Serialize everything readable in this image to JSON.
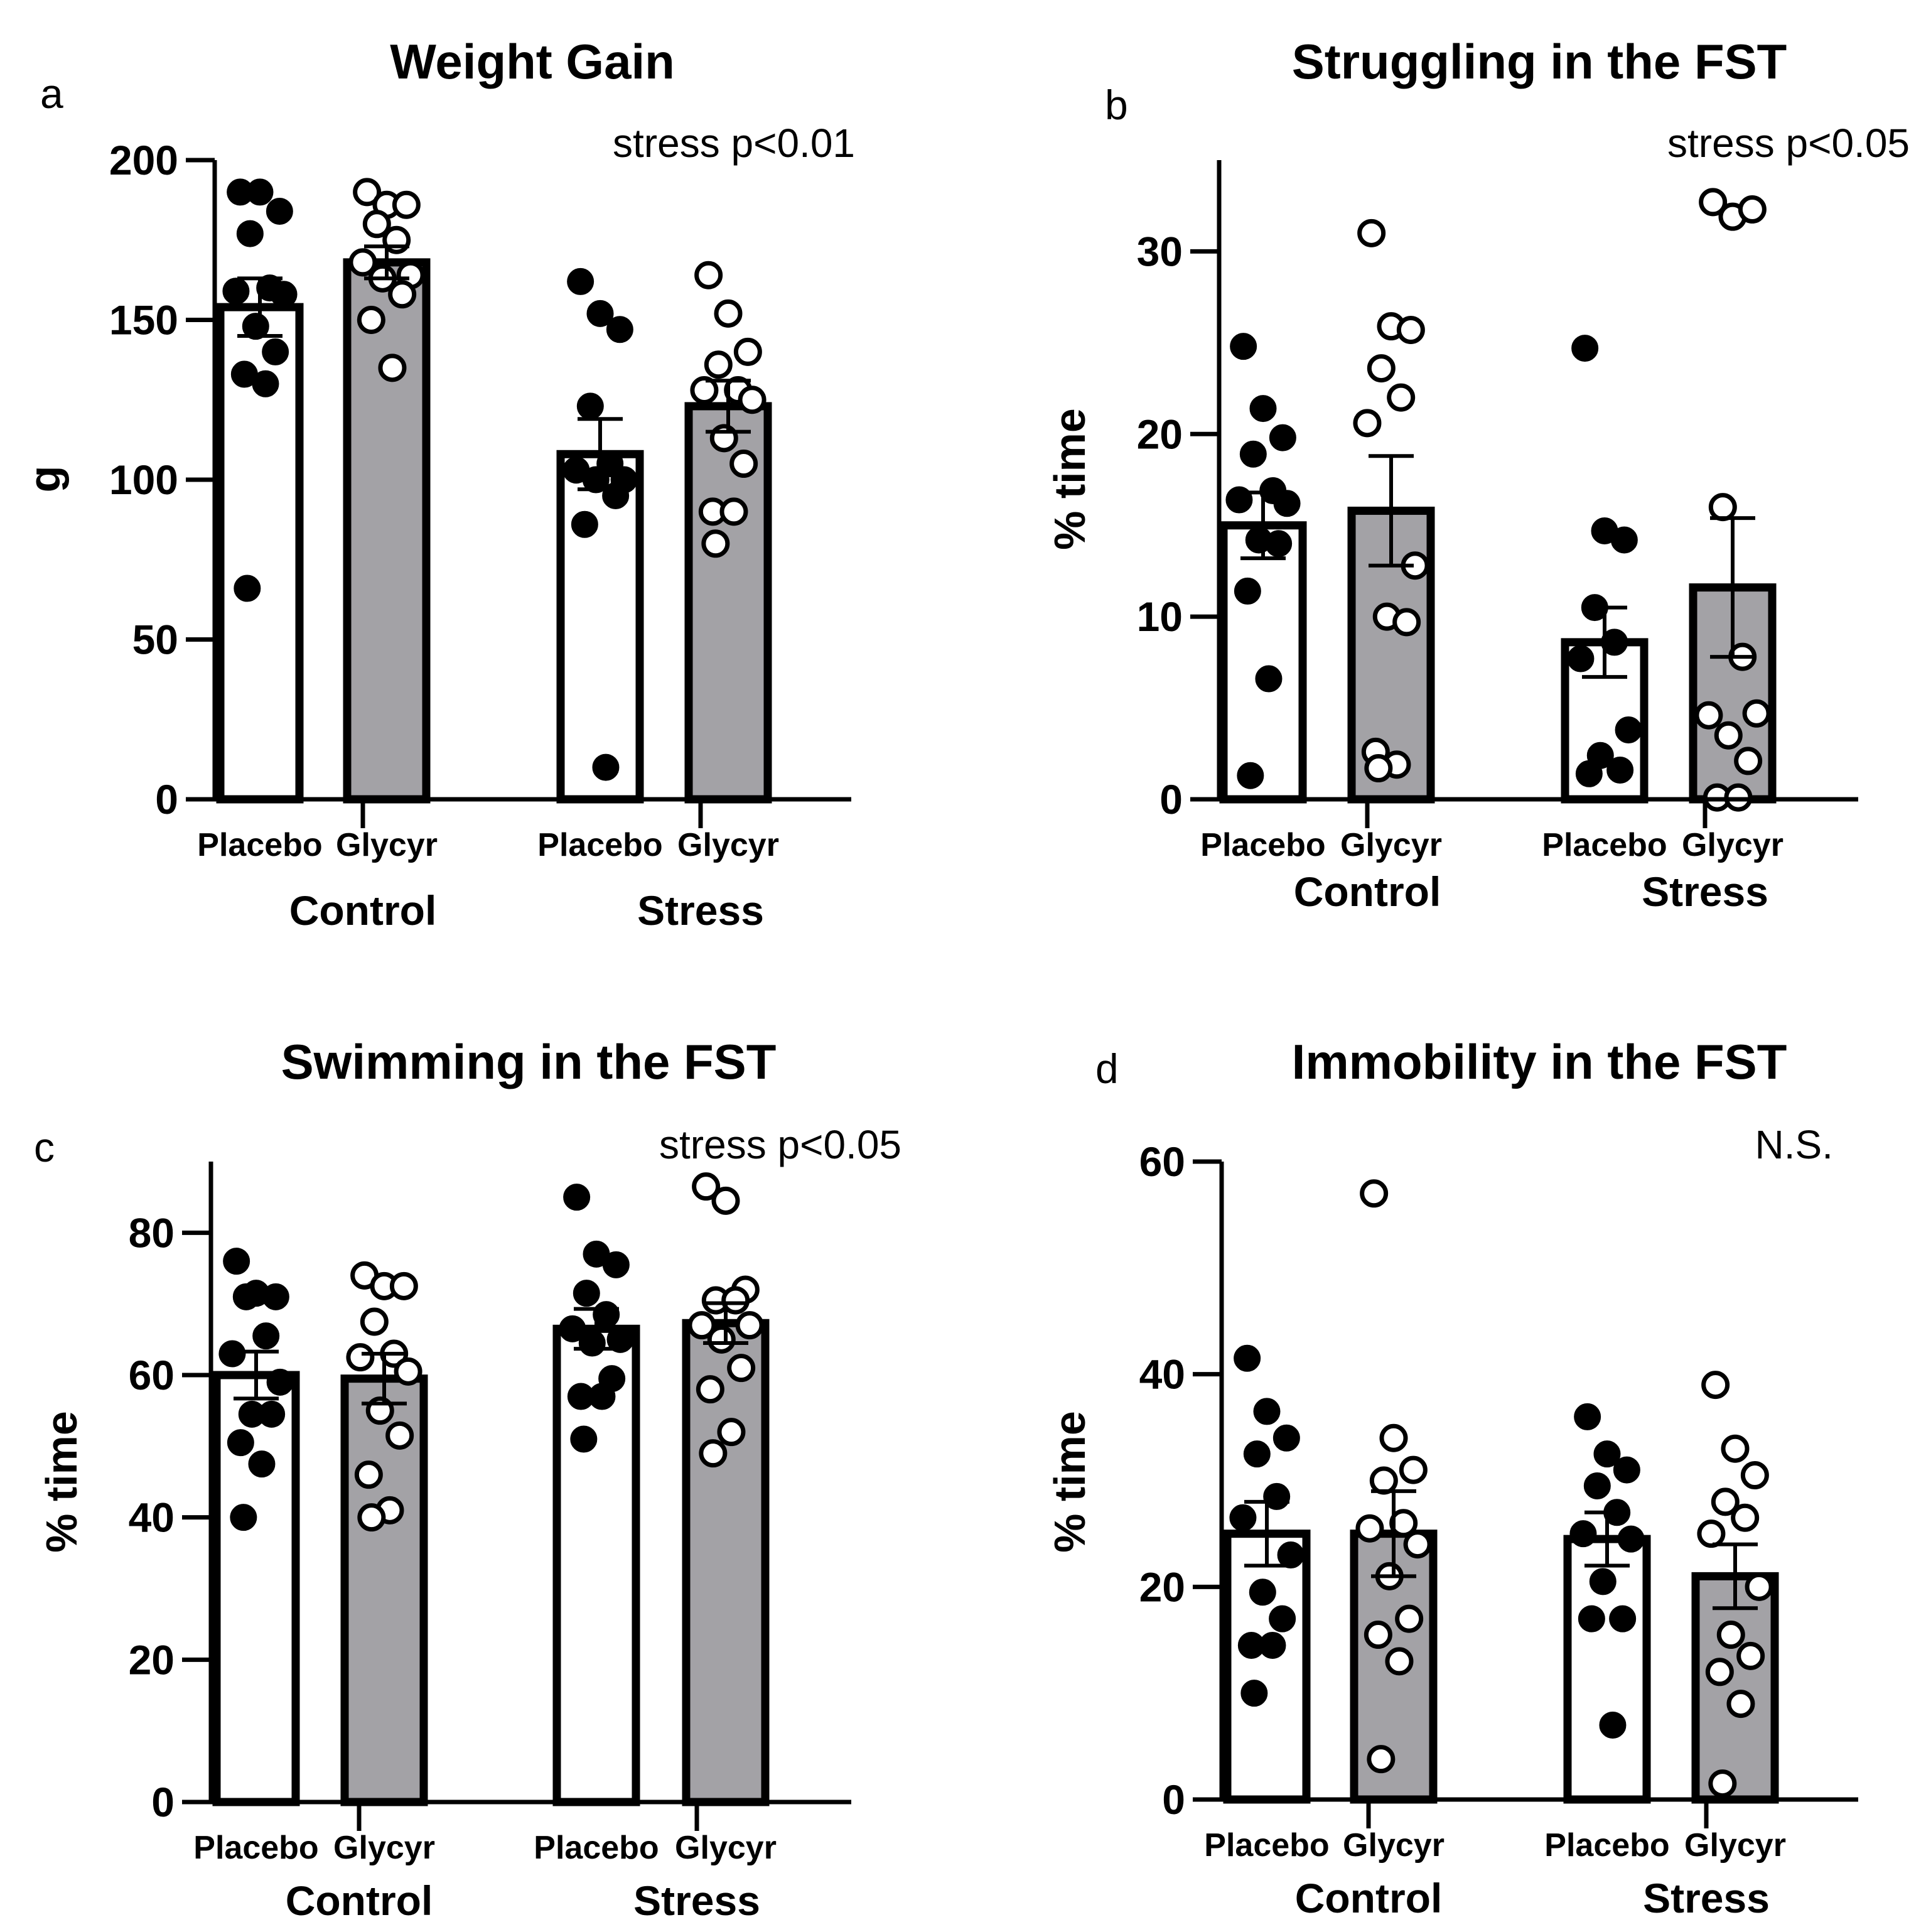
{
  "colors": {
    "ink": "#000000",
    "placebo_fill": "#ffffff",
    "glycyr_fill": "#a3a2a6"
  },
  "chart_data": [
    {
      "panel": "a",
      "type": "bar",
      "title": "Weight Gain",
      "annotation": "stress p<0.01",
      "ylabel": "g",
      "ylim": [
        0,
        200
      ],
      "yticks": [
        0,
        50,
        100,
        150,
        200
      ],
      "treatments": [
        "Placebo",
        "Glycyr"
      ],
      "groups": [
        "Control",
        "Stress"
      ],
      "bars": [
        {
          "group": "Control",
          "treatment": "Placebo",
          "mean": 154,
          "sem": 9,
          "marker": "filled",
          "points": [
            190,
            190,
            184,
            177,
            160,
            159,
            158,
            148,
            140,
            133,
            130,
            66
          ]
        },
        {
          "group": "Control",
          "treatment": "Glycyr",
          "mean": 168,
          "sem": 5,
          "marker": "open",
          "points": [
            190,
            186,
            186,
            180,
            175,
            168,
            164,
            163,
            158,
            150,
            135
          ]
        },
        {
          "group": "Stress",
          "treatment": "Placebo",
          "mean": 108,
          "sem": 11,
          "marker": "filled",
          "points": [
            162,
            152,
            147,
            123,
            105,
            103,
            100,
            100,
            95,
            86,
            10
          ]
        },
        {
          "group": "Stress",
          "treatment": "Glycyr",
          "mean": 123,
          "sem": 8,
          "marker": "open",
          "points": [
            164,
            152,
            140,
            136,
            128,
            128,
            125,
            113,
            105,
            90,
            90,
            80
          ]
        }
      ]
    },
    {
      "panel": "b",
      "type": "bar",
      "title": "Struggling in the FST",
      "annotation": "stress p<0.05",
      "ylabel": "% time",
      "ylim": [
        0,
        35
      ],
      "yticks": [
        0,
        10,
        20,
        30
      ],
      "treatments": [
        "Placebo",
        "Glycyr"
      ],
      "groups": [
        "Control",
        "Stress"
      ],
      "bars": [
        {
          "group": "Control",
          "treatment": "Placebo",
          "mean": 15,
          "sem": 1.8,
          "marker": "filled",
          "points": [
            24.8,
            21.4,
            19.8,
            18.9,
            16.9,
            16.4,
            16.2,
            14.2,
            14.0,
            11.4,
            6.6,
            1.3
          ]
        },
        {
          "group": "Control",
          "treatment": "Glycyr",
          "mean": 15.8,
          "sem": 3.0,
          "marker": "open",
          "points": [
            31.0,
            25.9,
            25.7,
            23.6,
            22.0,
            20.6,
            12.8,
            10.0,
            9.7,
            2.6,
            1.9,
            1.7
          ]
        },
        {
          "group": "Stress",
          "treatment": "Placebo",
          "mean": 8.6,
          "sem": 1.9,
          "marker": "filled",
          "points": [
            24.7,
            14.7,
            14.2,
            10.5,
            8.6,
            7.7,
            3.8,
            2.4,
            1.6,
            1.4
          ]
        },
        {
          "group": "Stress",
          "treatment": "Glycyr",
          "mean": 11.6,
          "sem": 3.8,
          "marker": "open",
          "points": [
            32.7,
            31.9,
            32.3,
            16.0,
            7.8,
            4.6,
            4.7,
            3.5,
            2.1,
            0.1,
            0.1
          ]
        }
      ]
    },
    {
      "panel": "c",
      "type": "bar",
      "title": "Swimming in the FST",
      "annotation": "stress p<0.05",
      "ylabel": "% time",
      "ylim": [
        0,
        90
      ],
      "yticks": [
        0,
        20,
        40,
        60,
        80
      ],
      "treatments": [
        "Placebo",
        "Glycyr"
      ],
      "groups": [
        "Control",
        "Stress"
      ],
      "bars": [
        {
          "group": "Control",
          "treatment": "Placebo",
          "mean": 60,
          "sem": 3.3,
          "marker": "filled",
          "points": [
            76,
            71.5,
            71,
            71,
            65.5,
            63,
            59,
            54.5,
            54.5,
            50.5,
            47.5,
            40
          ]
        },
        {
          "group": "Control",
          "treatment": "Glycyr",
          "mean": 59.5,
          "sem": 3.5,
          "marker": "open",
          "points": [
            74,
            72.5,
            72.5,
            67.5,
            63,
            62.5,
            60.5,
            55,
            51.5,
            46,
            41,
            40
          ]
        },
        {
          "group": "Stress",
          "treatment": "Placebo",
          "mean": 66.5,
          "sem": 2.8,
          "marker": "filled",
          "points": [
            85,
            77,
            75.5,
            71.5,
            68.5,
            66.5,
            65,
            64.5,
            59.5,
            57,
            57,
            51
          ]
        },
        {
          "group": "Stress",
          "treatment": "Glycyr",
          "mean": 67.3,
          "sem": 2.8,
          "marker": "open",
          "points": [
            86.5,
            84.5,
            72,
            70.5,
            70.5,
            67,
            67,
            65,
            61,
            58,
            52,
            49
          ]
        }
      ]
    },
    {
      "panel": "d",
      "type": "bar",
      "title": "Immobility in the FST",
      "annotation": "N.S.",
      "ylabel": "% time",
      "ylim": [
        0,
        60
      ],
      "yticks": [
        0,
        20,
        40,
        60
      ],
      "treatments": [
        "Placebo",
        "Glycyr"
      ],
      "groups": [
        "Control",
        "Stress"
      ],
      "bars": [
        {
          "group": "Control",
          "treatment": "Placebo",
          "mean": 25,
          "sem": 3,
          "marker": "filled",
          "points": [
            41.5,
            36.5,
            34,
            32.5,
            28.5,
            26.5,
            23,
            19.5,
            17,
            14.5,
            14.5,
            10
          ]
        },
        {
          "group": "Control",
          "treatment": "Glycyr",
          "mean": 25,
          "sem": 4,
          "marker": "open",
          "points": [
            57,
            34,
            31,
            30,
            26,
            25.5,
            24,
            21,
            17,
            15.5,
            13,
            3.8
          ]
        },
        {
          "group": "Stress",
          "treatment": "Placebo",
          "mean": 24.5,
          "sem": 2.5,
          "marker": "filled",
          "points": [
            36,
            32.5,
            31,
            29.5,
            27,
            25,
            24.5,
            20.5,
            17,
            17,
            7
          ]
        },
        {
          "group": "Stress",
          "treatment": "Glycyr",
          "mean": 21,
          "sem": 3,
          "marker": "open",
          "points": [
            39,
            33,
            30.5,
            28,
            26.5,
            25,
            20,
            15.5,
            13.5,
            12,
            9,
            1.5
          ]
        }
      ]
    }
  ]
}
